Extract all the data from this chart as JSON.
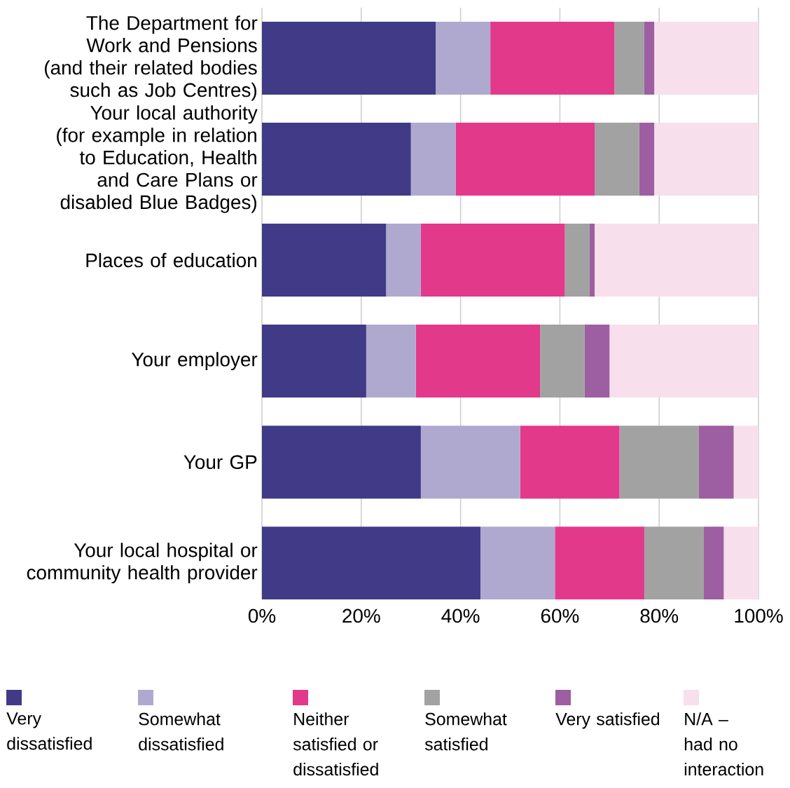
{
  "chart_data": {
    "type": "bar",
    "orientation": "horizontal",
    "stacked": true,
    "categories": [
      "The Department for Work and Pensions (and their related bodies such as Job Centres)",
      "Your local authority (for example in relation to Education, Health and Care Plans or disabled Blue Badges)",
      "Places of education",
      "Your employer",
      "Your GP",
      "Your local hospital or community health provider"
    ],
    "series": [
      {
        "name": "Very dissatisfied",
        "color": "#413a87",
        "values": [
          35,
          30,
          25,
          21,
          32,
          44
        ]
      },
      {
        "name": "Somewhat dissatisfied",
        "color": "#afa9d0",
        "values": [
          11,
          9,
          7,
          10,
          20,
          15
        ]
      },
      {
        "name": "Neither satisfied or dissatisfied",
        "color": "#e2398b",
        "values": [
          25,
          28,
          29,
          25,
          20,
          18
        ]
      },
      {
        "name": "Somewhat satisfied",
        "color": "#a3a2a3",
        "values": [
          6,
          9,
          5,
          9,
          16,
          12
        ]
      },
      {
        "name": "Very satisfied",
        "color": "#9d5ea2",
        "values": [
          2,
          3,
          1,
          5,
          7,
          4
        ]
      },
      {
        "name": "N/A – had no interaction",
        "color": "#f8dfec",
        "values": [
          21,
          21,
          33,
          30,
          5,
          7
        ]
      }
    ],
    "xlim": [
      0,
      100
    ],
    "xticks": [
      {
        "value": 0,
        "label": "0%"
      },
      {
        "value": 20,
        "label": "20%"
      },
      {
        "value": 40,
        "label": "40%"
      },
      {
        "value": 60,
        "label": "60%"
      },
      {
        "value": 80,
        "label": "80%"
      },
      {
        "value": 100,
        "label": "100%"
      }
    ],
    "grid": "x",
    "legend": "bottom"
  }
}
